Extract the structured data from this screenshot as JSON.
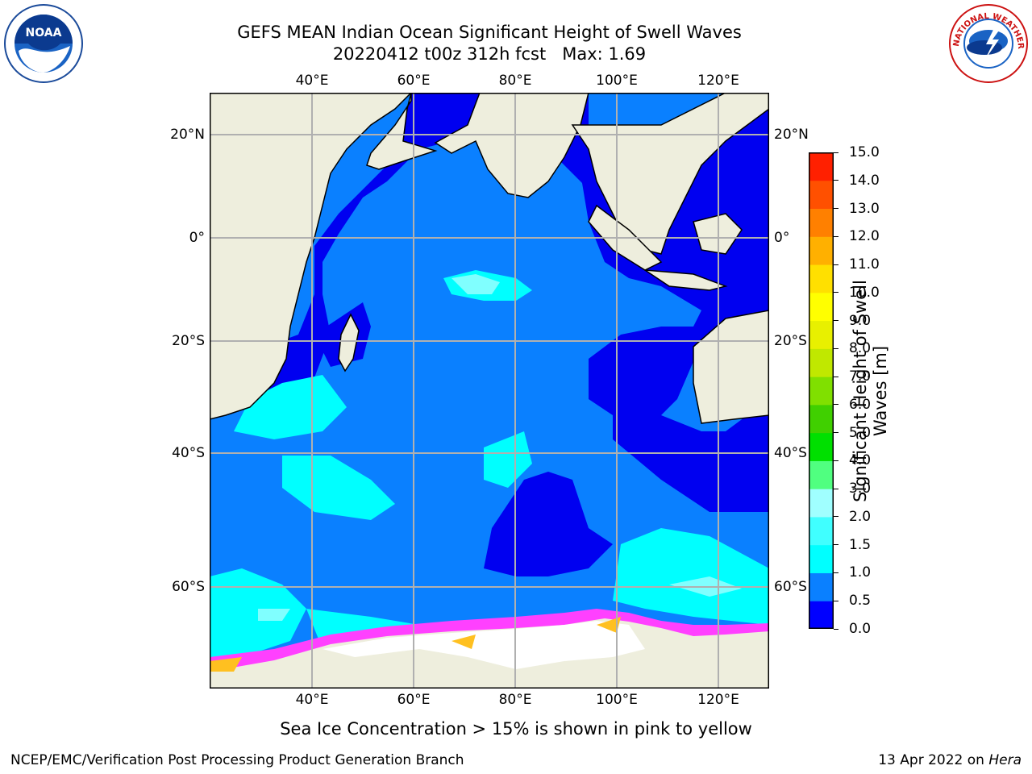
{
  "header": {
    "title_line1": "GEFS MEAN Indian Ocean Significant Height of Swell Waves",
    "title_line2": "20220412 t00z 312h fcst   Max: 1.69"
  },
  "logos": {
    "left": {
      "name": "noaa-logo",
      "text": "NOAA"
    },
    "right": {
      "name": "nws-logo",
      "text": "NATIONAL WEATHER SERVICE"
    }
  },
  "map": {
    "lon_ticks": [
      "40°E",
      "60°E",
      "80°E",
      "100°E",
      "120°E"
    ],
    "lat_ticks": [
      "20°N",
      "0°",
      "20°S",
      "40°S",
      "60°S"
    ],
    "lon_range": [
      20,
      130
    ],
    "lat_range": [
      -74,
      28
    ],
    "grid": true,
    "colors": {
      "ocean_bg": "#0a80ff",
      "land": "#eeeedd",
      "low_swell": "#0000f0",
      "mid_swell": "#00ffff",
      "light_swell": "#80ffff",
      "ice_white": "#ffffff",
      "ice_pink": "#ff40ff",
      "ice_yellow": "#ffc020"
    }
  },
  "colorbar": {
    "label": "Significant Height of Swell Waves [m]",
    "ticks": [
      "0.0",
      "0.5",
      "1.0",
      "1.5",
      "2.0",
      "3.0",
      "4.0",
      "5.0",
      "6.0",
      "7.0",
      "8.0",
      "9.0",
      "10.0",
      "11.0",
      "12.0",
      "13.0",
      "14.0",
      "15.0"
    ],
    "colors": [
      "#0000ff",
      "#0a80ff",
      "#00ffff",
      "#40ffff",
      "#a0ffff",
      "#50ff80",
      "#00e000",
      "#40d000",
      "#80e000",
      "#c0e800",
      "#e8f000",
      "#ffff00",
      "#ffe000",
      "#ffb000",
      "#ff8000",
      "#ff5000",
      "#ff2000"
    ]
  },
  "subtitle": "Sea Ice Concentration > 15% is shown in pink to yellow",
  "footer": {
    "left": "NCEP/EMC/Verification Post Processing Product Generation Branch",
    "right_date": "13 Apr 2022 on ",
    "right_host": "Hera"
  }
}
